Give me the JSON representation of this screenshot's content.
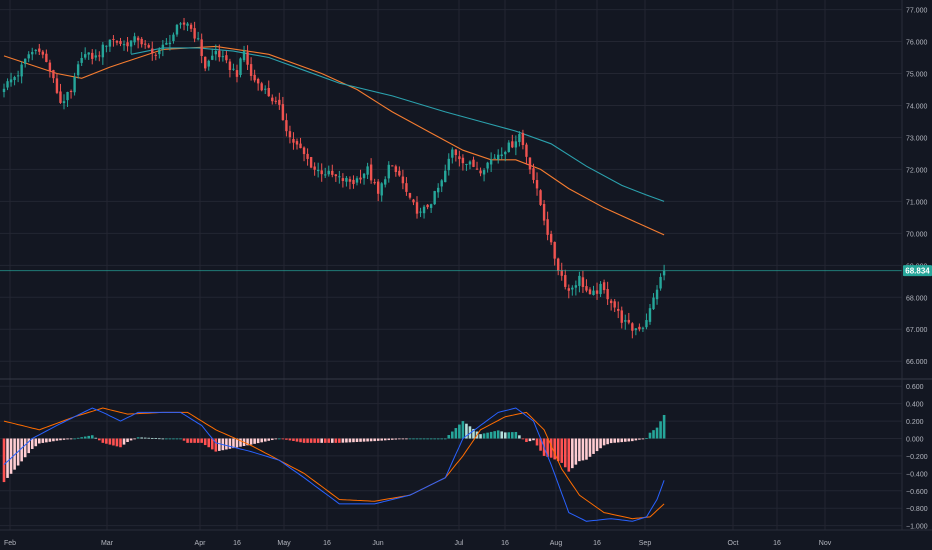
{
  "colors": {
    "background": "#131722",
    "grid": "#232632",
    "axis_text": "#b2b5be",
    "up": "#26a69a",
    "down": "#ef5350",
    "ma_fast": "#f57c30",
    "ma_slow": "#2ba1ad",
    "macd_line": "#2962ff",
    "signal_line": "#ff6d00",
    "hist_up_strong": "#26a69a",
    "hist_up_weak": "#b2dfdb",
    "hist_down_strong": "#ff5252",
    "hist_down_weak": "#ffcdd2",
    "last_price_label": "#26a69a"
  },
  "chart_data": [
    {
      "type": "candlestick",
      "panel": "price",
      "x_tick_labels": [
        "Feb",
        "Mar",
        "Apr",
        "16",
        "May",
        "16",
        "Jun",
        "Jul",
        "16",
        "Aug",
        "16",
        "Sep",
        "Oct",
        "16",
        "Nov"
      ],
      "y_tick_labels": [
        "77.000",
        "76.000",
        "75.000",
        "74.000",
        "73.000",
        "72.000",
        "71.000",
        "70.000",
        "69.000",
        "68.000",
        "67.000",
        "66.000"
      ],
      "ylim": [
        65.6,
        77.3
      ],
      "last_price": 68.834,
      "last_price_label": "68.834",
      "grid": true,
      "candle_sessions": 188,
      "close_anchors": [
        [
          0,
          74.6
        ],
        [
          4,
          75.0
        ],
        [
          7,
          75.6
        ],
        [
          10,
          75.8
        ],
        [
          13,
          75.1
        ],
        [
          16,
          74.1
        ],
        [
          19,
          74.4
        ],
        [
          22,
          75.6
        ],
        [
          26,
          75.5
        ],
        [
          30,
          76.1
        ],
        [
          34,
          75.9
        ],
        [
          38,
          76.1
        ],
        [
          42,
          75.6
        ],
        [
          46,
          75.9
        ],
        [
          49,
          76.4
        ],
        [
          52,
          76.6
        ],
        [
          55,
          76.0
        ],
        [
          57,
          75.2
        ],
        [
          60,
          75.7
        ],
        [
          63,
          75.3
        ],
        [
          66,
          75.0
        ],
        [
          68,
          75.7
        ],
        [
          70,
          74.9
        ],
        [
          73,
          74.6
        ],
        [
          76,
          74.2
        ],
        [
          78,
          73.9
        ],
        [
          81,
          73.0
        ],
        [
          84,
          72.6
        ],
        [
          88,
          72.0
        ],
        [
          91,
          71.9
        ],
        [
          95,
          71.7
        ],
        [
          99,
          71.6
        ],
        [
          103,
          72.0
        ],
        [
          106,
          71.2
        ],
        [
          109,
          72.1
        ],
        [
          112,
          71.8
        ],
        [
          115,
          71.0
        ],
        [
          118,
          70.6
        ],
        [
          121,
          71.0
        ],
        [
          124,
          71.6
        ],
        [
          127,
          72.6
        ],
        [
          131,
          72.2
        ],
        [
          135,
          72.0
        ],
        [
          140,
          72.5
        ],
        [
          144,
          72.8
        ],
        [
          146,
          73.1
        ],
        [
          149,
          72.1
        ],
        [
          152,
          70.9
        ],
        [
          155,
          69.6
        ],
        [
          157,
          68.9
        ],
        [
          160,
          68.2
        ],
        [
          163,
          68.6
        ],
        [
          166,
          68.0
        ],
        [
          169,
          68.3
        ],
        [
          172,
          67.9
        ],
        [
          175,
          67.3
        ],
        [
          178,
          67.0
        ],
        [
          181,
          67.1
        ],
        [
          183,
          67.6
        ],
        [
          185,
          68.3
        ],
        [
          187,
          68.83
        ]
      ],
      "moving_averages": [
        {
          "color": "#f57c30",
          "points": [
            [
              0,
              75.55
            ],
            [
              15,
              75.0
            ],
            [
              22,
              74.85
            ],
            [
              30,
              75.2
            ],
            [
              45,
              75.75
            ],
            [
              60,
              75.85
            ],
            [
              75,
              75.6
            ],
            [
              90,
              75.0
            ],
            [
              100,
              74.5
            ],
            [
              110,
              73.8
            ],
            [
              120,
              73.2
            ],
            [
              130,
              72.6
            ],
            [
              138,
              72.3
            ],
            [
              145,
              72.3
            ],
            [
              152,
              72.0
            ],
            [
              160,
              71.4
            ],
            [
              170,
              70.8
            ],
            [
              180,
              70.3
            ],
            [
              187,
              69.95
            ]
          ]
        },
        {
          "color": "#2ba1ad",
          "points": [
            [
              36,
              75.6
            ],
            [
              45,
              75.8
            ],
            [
              55,
              75.8
            ],
            [
              65,
              75.7
            ],
            [
              75,
              75.5
            ],
            [
              85,
              75.1
            ],
            [
              95,
              74.7
            ],
            [
              110,
              74.3
            ],
            [
              125,
              73.8
            ],
            [
              135,
              73.5
            ],
            [
              145,
              73.2
            ],
            [
              155,
              72.8
            ],
            [
              165,
              72.1
            ],
            [
              175,
              71.5
            ],
            [
              182,
              71.2
            ],
            [
              187,
              71.0
            ]
          ]
        }
      ]
    },
    {
      "type": "macd",
      "panel": "indicator",
      "y_tick_labels": [
        "0.600",
        "0.400",
        "0.200",
        "0.000",
        "−0.200",
        "−0.400",
        "−0.600",
        "−0.800",
        "−1.000"
      ],
      "ylim": [
        -1.05,
        0.66
      ],
      "grid": true,
      "macd_anchors": [
        [
          0,
          -0.3
        ],
        [
          8,
          0.0
        ],
        [
          15,
          0.15
        ],
        [
          20,
          0.25
        ],
        [
          25,
          0.35
        ],
        [
          28,
          0.3
        ],
        [
          33,
          0.2
        ],
        [
          38,
          0.3
        ],
        [
          43,
          0.3
        ],
        [
          50,
          0.3
        ],
        [
          56,
          0.15
        ],
        [
          60,
          -0.05
        ],
        [
          65,
          -0.1
        ],
        [
          70,
          -0.15
        ],
        [
          78,
          -0.25
        ],
        [
          85,
          -0.45
        ],
        [
          95,
          -0.75
        ],
        [
          105,
          -0.75
        ],
        [
          115,
          -0.65
        ],
        [
          125,
          -0.45
        ],
        [
          130,
          0.0
        ],
        [
          135,
          0.15
        ],
        [
          140,
          0.3
        ],
        [
          145,
          0.35
        ],
        [
          150,
          0.2
        ],
        [
          155,
          -0.3
        ],
        [
          160,
          -0.85
        ],
        [
          165,
          -0.95
        ],
        [
          172,
          -0.92
        ],
        [
          178,
          -0.95
        ],
        [
          182,
          -0.9
        ],
        [
          185,
          -0.7
        ],
        [
          187,
          -0.48
        ]
      ],
      "signal_anchors": [
        [
          0,
          0.2
        ],
        [
          10,
          0.1
        ],
        [
          20,
          0.25
        ],
        [
          28,
          0.35
        ],
        [
          35,
          0.28
        ],
        [
          45,
          0.3
        ],
        [
          52,
          0.3
        ],
        [
          60,
          0.1
        ],
        [
          70,
          -0.08
        ],
        [
          78,
          -0.25
        ],
        [
          85,
          -0.4
        ],
        [
          95,
          -0.7
        ],
        [
          105,
          -0.72
        ],
        [
          115,
          -0.65
        ],
        [
          125,
          -0.45
        ],
        [
          130,
          -0.2
        ],
        [
          135,
          0.1
        ],
        [
          142,
          0.25
        ],
        [
          148,
          0.3
        ],
        [
          153,
          0.1
        ],
        [
          158,
          -0.35
        ],
        [
          163,
          -0.65
        ],
        [
          170,
          -0.85
        ],
        [
          178,
          -0.92
        ],
        [
          183,
          -0.9
        ],
        [
          187,
          -0.75
        ]
      ]
    }
  ]
}
